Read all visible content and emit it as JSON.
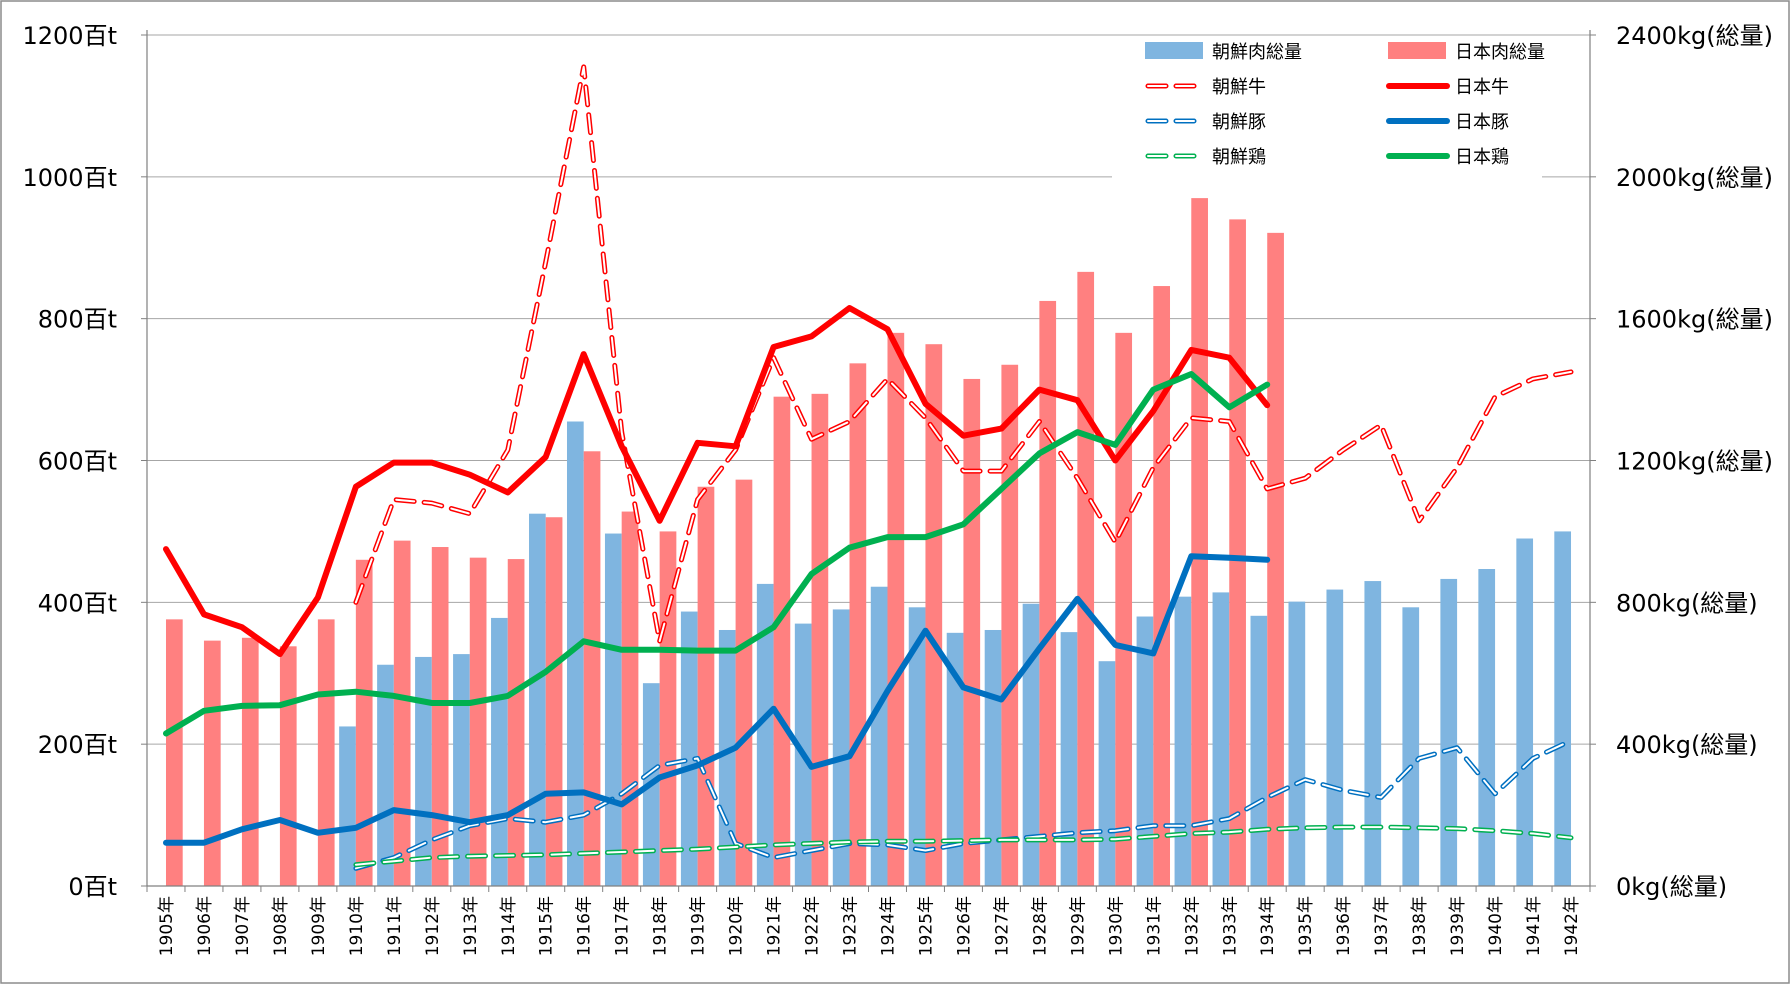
{
  "chart_data": {
    "type": "bar+line",
    "categories": [
      "1905年",
      "1906年",
      "1907年",
      "1908年",
      "1909年",
      "1910年",
      "1911年",
      "1912年",
      "1913年",
      "1914年",
      "1915年",
      "1916年",
      "1917年",
      "1918年",
      "1919年",
      "1920年",
      "1921年",
      "1922年",
      "1923年",
      "1924年",
      "1925年",
      "1926年",
      "1927年",
      "1928年",
      "1929年",
      "1930年",
      "1931年",
      "1932年",
      "1933年",
      "1934年",
      "1935年",
      "1936年",
      "1937年",
      "1938年",
      "1939年",
      "1940年",
      "1941年",
      "1942年"
    ],
    "y_left": {
      "ticks": [
        "0百t",
        "200百t",
        "400百t",
        "600百t",
        "800百t",
        "1000百t",
        "1200百t"
      ],
      "range": [
        0,
        1200
      ],
      "step": 200
    },
    "y_right": {
      "ticks": [
        "0kg(総量)",
        "400kg(総量)",
        "800kg(総量)",
        "1200kg(総量)",
        "1600kg(総量)",
        "2000kg(総量)",
        "2400kg(総量)"
      ],
      "range": [
        0,
        2400
      ],
      "step": 400
    },
    "bars": [
      {
        "name": "朝鮮肉総量",
        "color": "#7fb5e0",
        "axis": "left",
        "values": [
          null,
          null,
          null,
          null,
          null,
          225,
          312,
          323,
          327,
          378,
          525,
          655,
          497,
          286,
          387,
          361,
          426,
          370,
          390,
          422,
          393,
          357,
          361,
          398,
          358,
          317,
          380,
          408,
          414,
          381,
          401,
          418,
          430,
          393,
          433,
          447,
          490,
          500
        ]
      },
      {
        "name": "日本肉総量",
        "color": "#ff8080",
        "axis": "left",
        "values": [
          376,
          346,
          350,
          338,
          376,
          460,
          487,
          478,
          463,
          461,
          520,
          613,
          528,
          500,
          563,
          573,
          690,
          694,
          737,
          780,
          764,
          715,
          735,
          825,
          866,
          780,
          846,
          970,
          940,
          921,
          null,
          null,
          null,
          null,
          null,
          null,
          null,
          null
        ]
      }
    ],
    "lines": [
      {
        "name": "朝鮮牛",
        "color": "#ff0000",
        "style": "dashed",
        "axis": "left",
        "values": [
          null,
          null,
          null,
          null,
          null,
          400,
          545,
          540,
          525,
          615,
          880,
          1155,
          640,
          345,
          545,
          615,
          745,
          630,
          655,
          715,
          660,
          585,
          585,
          655,
          575,
          485,
          590,
          660,
          655,
          560,
          575,
          615,
          650,
          515,
          590,
          690,
          715,
          725
        ]
      },
      {
        "name": "日本牛",
        "color": "#ff0000",
        "style": "solid",
        "axis": "left",
        "values": [
          475,
          383,
          365,
          327,
          407,
          563,
          597,
          597,
          580,
          555,
          605,
          750,
          620,
          515,
          625,
          620,
          760,
          775,
          815,
          785,
          680,
          635,
          645,
          700,
          685,
          600,
          670,
          756,
          745,
          678,
          null,
          null,
          null,
          null,
          null,
          null,
          null,
          null
        ]
      },
      {
        "name": "朝鮮豚",
        "color": "#0070c0",
        "style": "dashed",
        "axis": "left",
        "values": [
          null,
          null,
          null,
          null,
          null,
          25,
          40,
          65,
          85,
          95,
          90,
          100,
          130,
          170,
          180,
          60,
          40,
          50,
          60,
          58,
          50,
          60,
          65,
          70,
          75,
          78,
          85,
          85,
          95,
          125,
          150,
          135,
          125,
          180,
          195,
          130,
          180,
          205
        ]
      },
      {
        "name": "日本豚",
        "color": "#0070c0",
        "style": "solid",
        "axis": "left",
        "values": [
          61,
          61,
          80,
          93,
          75,
          82,
          107,
          100,
          90,
          100,
          130,
          132,
          115,
          153,
          170,
          195,
          250,
          168,
          183,
          275,
          360,
          280,
          263,
          335,
          405,
          340,
          328,
          465,
          463,
          460,
          null,
          null,
          null,
          null,
          null,
          null,
          null,
          null
        ]
      },
      {
        "name": "朝鮮鶏",
        "color": "#00b050",
        "style": "dashed",
        "axis": "left",
        "values": [
          null,
          null,
          null,
          null,
          null,
          30,
          35,
          40,
          42,
          43,
          44,
          46,
          48,
          50,
          52,
          55,
          58,
          60,
          62,
          63,
          63,
          64,
          65,
          65,
          65,
          66,
          70,
          74,
          76,
          80,
          82,
          83,
          83,
          82,
          81,
          78,
          74,
          68
        ]
      },
      {
        "name": "日本鶏",
        "color": "#00b050",
        "style": "solid",
        "axis": "left",
        "values": [
          215,
          247,
          254,
          255,
          270,
          274,
          268,
          258,
          258,
          268,
          302,
          345,
          333,
          333,
          332,
          332,
          365,
          440,
          477,
          492,
          492,
          510,
          560,
          610,
          640,
          622,
          700,
          722,
          675,
          707,
          null,
          null,
          null,
          null,
          null,
          null,
          null,
          null
        ]
      }
    ],
    "legend": {
      "position": "top-right",
      "entries": [
        "朝鮮肉総量",
        "日本肉総量",
        "朝鮮牛",
        "日本牛",
        "朝鮮豚",
        "日本豚",
        "朝鮮鶏",
        "日本鶏"
      ]
    },
    "grid": true
  }
}
